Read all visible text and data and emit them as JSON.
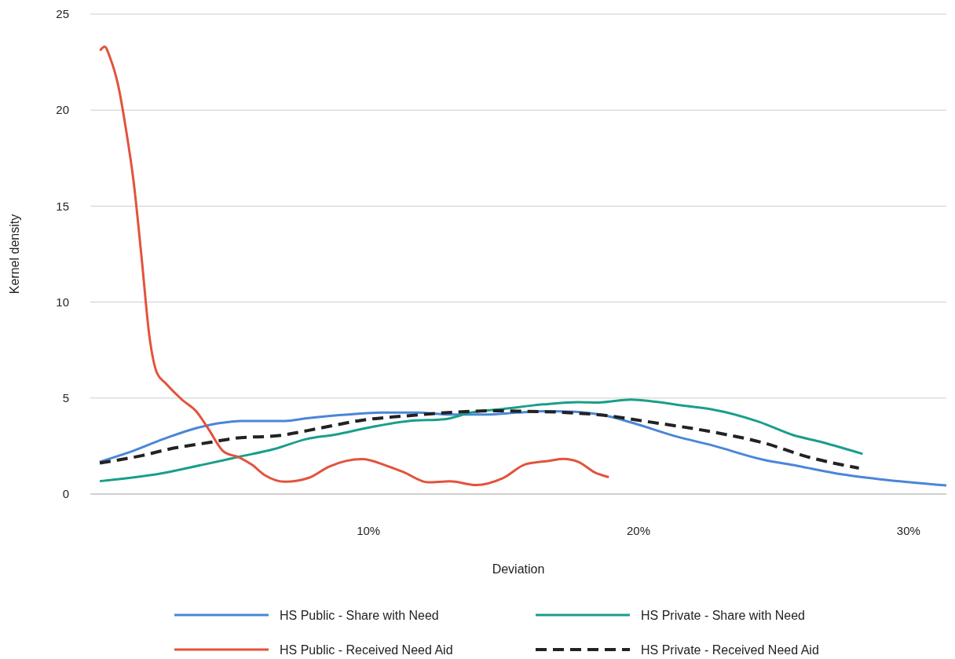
{
  "chart_data": {
    "type": "line",
    "xlabel": "Deviation",
    "ylabel": "Kernel density",
    "xlim": [
      -0.3,
      31.4
    ],
    "ylim": [
      0,
      25
    ],
    "xticks": [
      {
        "value": 10,
        "label": "10%"
      },
      {
        "value": 20,
        "label": "20%"
      },
      {
        "value": 30,
        "label": "30%"
      }
    ],
    "yticks": [
      0,
      5,
      10,
      15,
      20,
      25
    ],
    "grid": "y",
    "legend": "bottom",
    "series": [
      {
        "name": "HS Public - Share with Need",
        "color": "#4a86d8",
        "line_style": "solid",
        "x": [
          0.05,
          1.09,
          2.41,
          3.63,
          4.46,
          5.28,
          6.91,
          7.72,
          9.24,
          10.47,
          11.8,
          13.02,
          14.35,
          15.47,
          16.58,
          17.66,
          18.74,
          19.82,
          21.42,
          22.72,
          24.65,
          25.73,
          27.56,
          28.95,
          31.4
        ],
        "values": [
          1.68,
          2.15,
          2.87,
          3.44,
          3.69,
          3.81,
          3.81,
          3.95,
          4.14,
          4.24,
          4.24,
          4.14,
          4.14,
          4.24,
          4.32,
          4.29,
          4.1,
          3.69,
          2.99,
          2.54,
          1.78,
          1.51,
          1.02,
          0.77,
          0.45
        ]
      },
      {
        "name": "HS Private - Share with Need",
        "color": "#1a9e8a",
        "line_style": "solid",
        "x": [
          0.05,
          2.32,
          3.84,
          5.17,
          6.5,
          7.72,
          8.74,
          10.07,
          11.5,
          12.82,
          13.84,
          14.97,
          16.48,
          17.76,
          18.52,
          19.71,
          20.57,
          21.75,
          22.72,
          24.45,
          25.73,
          26.8,
          28.3
        ],
        "values": [
          0.67,
          1.07,
          1.52,
          1.93,
          2.34,
          2.87,
          3.09,
          3.48,
          3.81,
          3.9,
          4.26,
          4.43,
          4.67,
          4.79,
          4.77,
          4.92,
          4.82,
          4.59,
          4.41,
          3.77,
          3.07,
          2.7,
          2.09
        ]
      },
      {
        "name": "HS Public - Received Need Aid",
        "color": "#e2533c",
        "line_style": "solid",
        "x": [
          0.06,
          0.23,
          0.44,
          0.73,
          1.02,
          1.31,
          1.6,
          1.89,
          2.17,
          2.47,
          3.11,
          3.63,
          4.07,
          4.65,
          5.23,
          5.68,
          6.19,
          6.91,
          7.82,
          8.54,
          9.77,
          10.68,
          11.29,
          12.21,
          13.02,
          14.0,
          14.97,
          15.83,
          16.69,
          17.23,
          17.76,
          18.42,
          18.9
        ],
        "values": [
          23.1,
          23.3,
          22.7,
          21.3,
          19.0,
          16.2,
          12.3,
          8.2,
          6.3,
          5.8,
          4.9,
          4.3,
          3.4,
          2.2,
          1.9,
          1.53,
          0.96,
          0.64,
          0.86,
          1.43,
          1.82,
          1.47,
          1.15,
          0.61,
          0.66,
          0.47,
          0.82,
          1.56,
          1.73,
          1.83,
          1.68,
          1.1,
          0.88
        ]
      },
      {
        "name": "HS Private - Received Need Aid",
        "color": "#222222",
        "line_style": "dashed",
        "x": [
          0.05,
          1.6,
          2.62,
          4.16,
          5.07,
          6.7,
          8.23,
          9.77,
          11.29,
          13.13,
          14.65,
          15.51,
          17.12,
          18.74,
          20.35,
          22.72,
          24.65,
          26.28,
          28.16
        ],
        "values": [
          1.62,
          2.0,
          2.34,
          2.7,
          2.91,
          3.05,
          3.44,
          3.85,
          4.06,
          4.26,
          4.34,
          4.32,
          4.26,
          4.1,
          3.77,
          3.24,
          2.66,
          1.93,
          1.35
        ]
      }
    ]
  }
}
